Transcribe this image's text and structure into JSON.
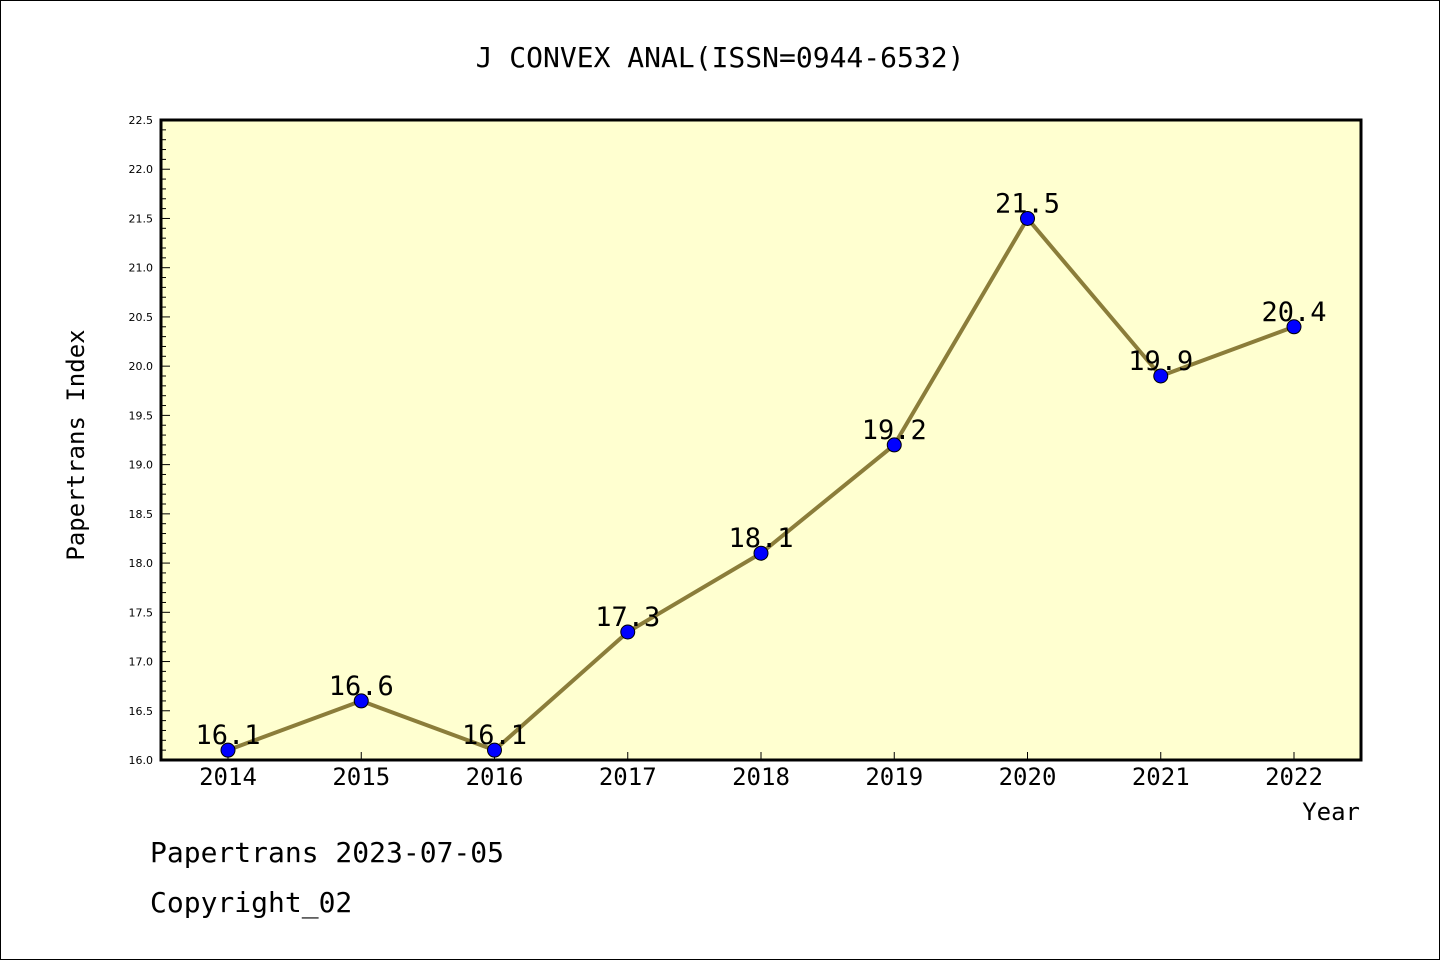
{
  "chart_data": {
    "type": "line",
    "title": "J CONVEX ANAL(ISSN=0944-6532)",
    "xlabel": "Year",
    "ylabel": "Papertrans Index",
    "categories": [
      "2014",
      "2015",
      "2016",
      "2017",
      "2018",
      "2019",
      "2020",
      "2021",
      "2022"
    ],
    "series": [
      {
        "values": [
          16.1,
          16.6,
          16.1,
          17.3,
          18.1,
          19.2,
          21.5,
          19.9,
          20.4
        ],
        "data_labels": [
          "16.1",
          "16.6",
          "16.1",
          "17.3",
          "18.1",
          "19.2",
          "21.5",
          "19.9",
          "20.4"
        ]
      }
    ],
    "ylim": [
      16.0,
      22.5
    ],
    "yticks": [
      "16.0",
      "16.5",
      "17.0",
      "17.5",
      "18.0",
      "18.5",
      "19.0",
      "19.5",
      "20.0",
      "20.5",
      "21.0",
      "21.5",
      "22.0",
      "22.5"
    ],
    "grid": false,
    "legend": "none",
    "colors": {
      "plot_background": "#ffffd0",
      "line": "#8b7d3a",
      "marker": "#0000ff"
    }
  },
  "footer": {
    "date_line": "Papertrans 2023-07-05",
    "copyright": "Copyright_02"
  }
}
